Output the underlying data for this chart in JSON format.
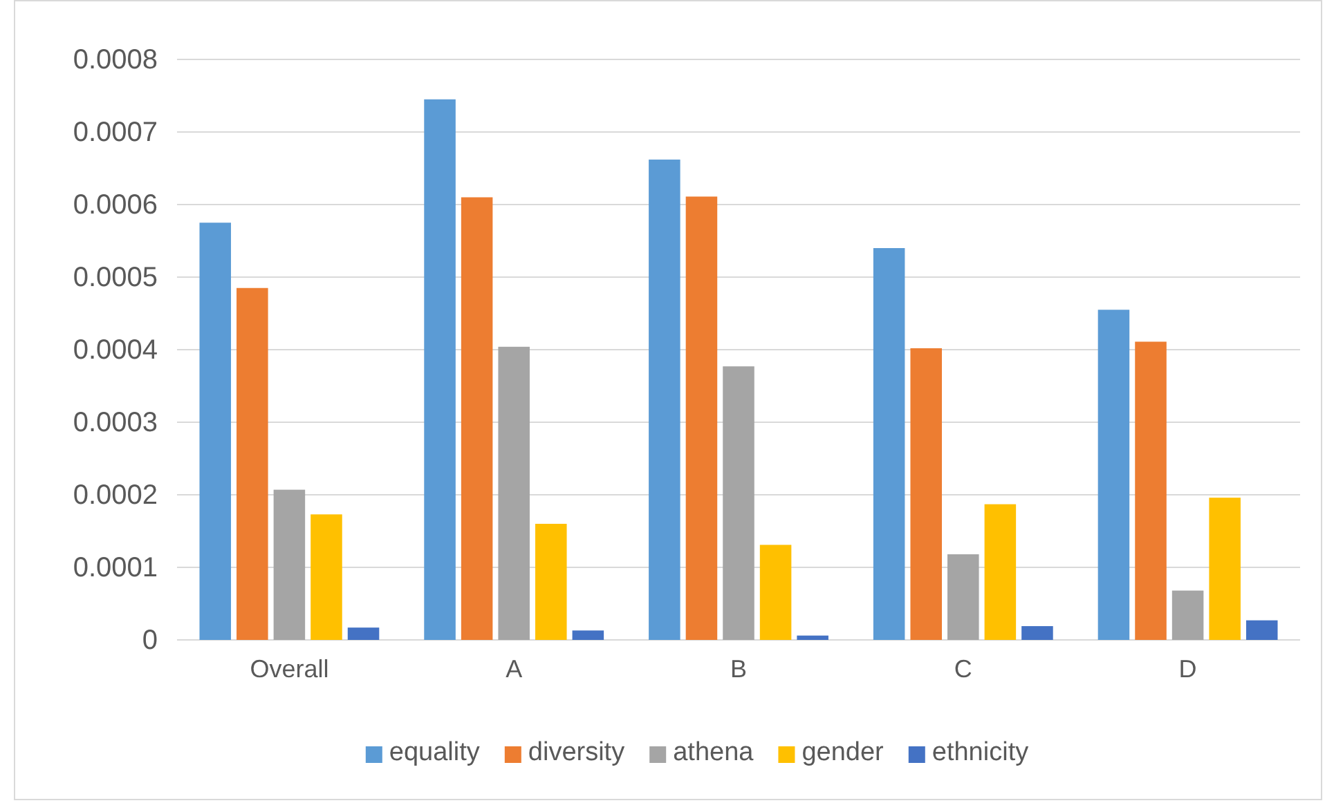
{
  "chart_data": {
    "type": "bar",
    "categories": [
      "Overall",
      "A",
      "B",
      "C",
      "D"
    ],
    "series": [
      {
        "name": "equality",
        "color": "#5b9bd5",
        "values": [
          0.000575,
          0.000745,
          0.000662,
          0.00054,
          0.000455
        ]
      },
      {
        "name": "diversity",
        "color": "#ed7d31",
        "values": [
          0.000485,
          0.00061,
          0.000611,
          0.000402,
          0.000411
        ]
      },
      {
        "name": "athena",
        "color": "#a5a5a5",
        "values": [
          0.000207,
          0.000404,
          0.000377,
          0.000118,
          6.8e-05
        ]
      },
      {
        "name": "gender",
        "color": "#ffc000",
        "values": [
          0.000173,
          0.00016,
          0.000131,
          0.000187,
          0.000196
        ]
      },
      {
        "name": "ethnicity",
        "color": "#4472c4",
        "values": [
          1.7e-05,
          1.3e-05,
          6e-06,
          1.9e-05,
          2.7e-05
        ]
      }
    ],
    "ylim": [
      0,
      0.0008
    ],
    "yticks": [
      0,
      0.0001,
      0.0002,
      0.0003,
      0.0004,
      0.0005,
      0.0006,
      0.0007,
      0.0008
    ],
    "grid": "y",
    "legend": "bottom"
  }
}
